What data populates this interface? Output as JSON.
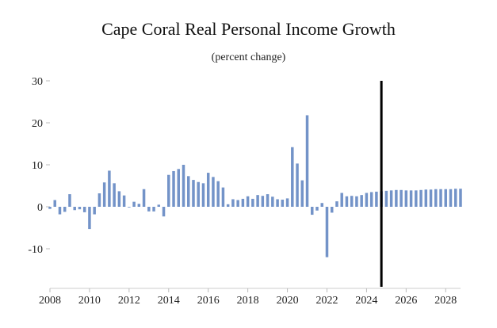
{
  "chart_data": {
    "type": "bar",
    "title": "Cape Coral Real Personal Income Growth",
    "subtitle": "(percent change)",
    "xlabel": "",
    "ylabel": "",
    "ylim": [
      -20,
      30
    ],
    "y_ticks": [
      30,
      20,
      10,
      0,
      -10
    ],
    "y_tick_labels": [
      "30",
      "20",
      "10",
      "0",
      "-10"
    ],
    "x_tick_labels": [
      "2008",
      "2010",
      "2012",
      "2014",
      "2016",
      "2018",
      "2020",
      "2022",
      "2024",
      "2026",
      "2028"
    ],
    "x_start": 2008.0,
    "x_end": 2028.75,
    "bar_color": "#7393c8",
    "vline_color": "#000000",
    "vline_x": 2024.75,
    "grid": false,
    "quarters": [
      "2008Q1",
      "2008Q2",
      "2008Q3",
      "2008Q4",
      "2009Q1",
      "2009Q2",
      "2009Q3",
      "2009Q4",
      "2010Q1",
      "2010Q2",
      "2010Q3",
      "2010Q4",
      "2011Q1",
      "2011Q2",
      "2011Q3",
      "2011Q4",
      "2012Q1",
      "2012Q2",
      "2012Q3",
      "2012Q4",
      "2013Q1",
      "2013Q2",
      "2013Q3",
      "2013Q4",
      "2014Q1",
      "2014Q2",
      "2014Q3",
      "2014Q4",
      "2015Q1",
      "2015Q2",
      "2015Q3",
      "2015Q4",
      "2016Q1",
      "2016Q2",
      "2016Q3",
      "2016Q4",
      "2017Q1",
      "2017Q2",
      "2017Q3",
      "2017Q4",
      "2018Q1",
      "2018Q2",
      "2018Q3",
      "2018Q4",
      "2019Q1",
      "2019Q2",
      "2019Q3",
      "2019Q4",
      "2020Q1",
      "2020Q2",
      "2020Q3",
      "2020Q4",
      "2021Q1",
      "2021Q2",
      "2021Q3",
      "2021Q4",
      "2022Q1",
      "2022Q2",
      "2022Q3",
      "2022Q4",
      "2023Q1",
      "2023Q2",
      "2023Q3",
      "2023Q4",
      "2024Q1",
      "2024Q2",
      "2024Q3",
      "2024Q4",
      "2025Q1",
      "2025Q2",
      "2025Q3",
      "2025Q4",
      "2026Q1",
      "2026Q2",
      "2026Q3",
      "2026Q4",
      "2027Q1",
      "2027Q2",
      "2027Q3",
      "2027Q4",
      "2028Q1",
      "2028Q2",
      "2028Q3",
      "2028Q4"
    ],
    "values": [
      -0.5,
      1.6,
      -1.8,
      -1.2,
      3.0,
      -0.8,
      -0.6,
      -1.3,
      -5.3,
      -1.8,
      3.2,
      5.8,
      8.6,
      5.6,
      3.7,
      2.7,
      0.0,
      1.2,
      0.7,
      4.2,
      -1.1,
      -1.1,
      0.5,
      -2.3,
      7.6,
      8.5,
      9.0,
      10.0,
      7.3,
      6.4,
      5.9,
      5.6,
      8.1,
      7.1,
      6.1,
      4.6,
      0.6,
      1.8,
      1.6,
      1.9,
      2.5,
      1.9,
      2.8,
      2.6,
      3.0,
      2.4,
      1.8,
      1.7,
      2.0,
      14.2,
      10.3,
      6.3,
      21.8,
      -1.9,
      -0.9,
      0.9,
      -12.0,
      -1.4,
      1.3,
      3.3,
      2.5,
      2.6,
      2.5,
      2.8,
      3.3,
      3.5,
      3.6,
      3.7,
      3.8,
      3.9,
      4.0,
      4.0,
      3.9,
      3.9,
      3.9,
      4.0,
      4.1,
      4.1,
      4.2,
      4.2,
      4.2,
      4.2,
      4.3,
      4.3
    ]
  }
}
